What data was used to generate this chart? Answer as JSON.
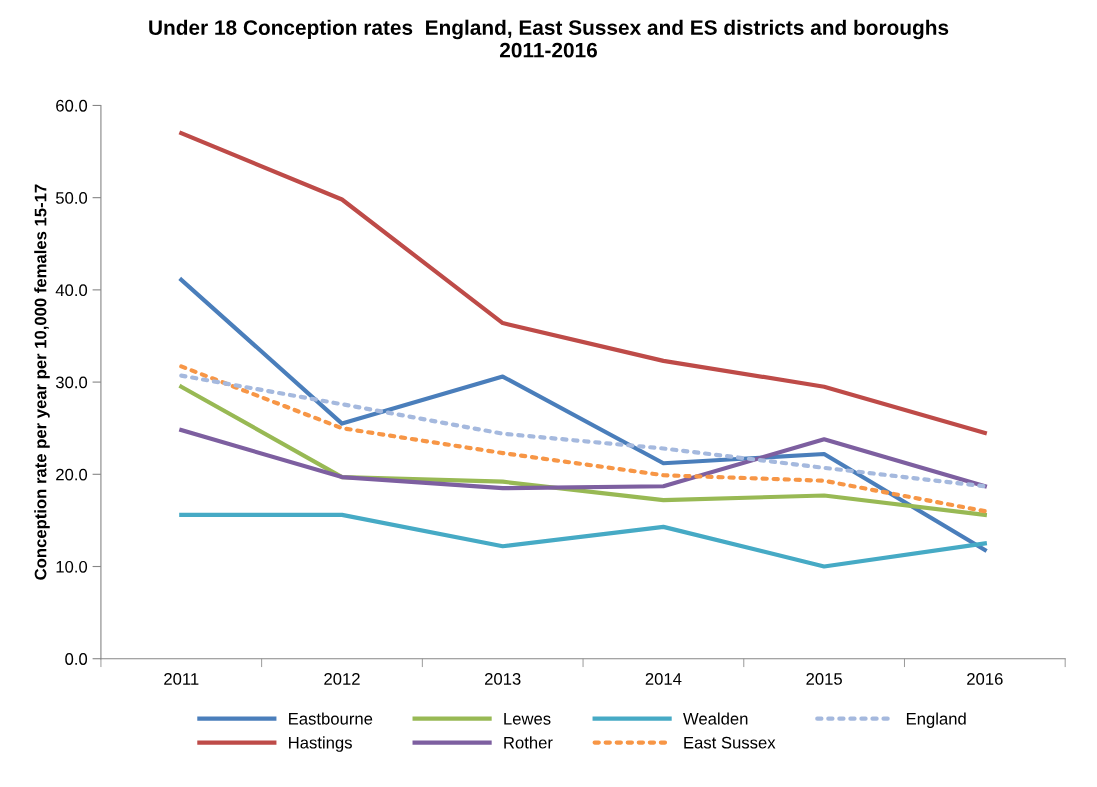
{
  "chart_data": {
    "type": "line",
    "title": "Under 18 Conception rates  England, East Sussex and ES districts and boroughs\n2011-2016",
    "ylabel": "Conception rate per year per 10,000 females 15-17",
    "categories": [
      "2011",
      "2012",
      "2013",
      "2014",
      "2015",
      "2016"
    ],
    "ylim": [
      0,
      60
    ],
    "yticks": [
      {
        "value": 0,
        "label": "0.0"
      },
      {
        "value": 10,
        "label": "10.0"
      },
      {
        "value": 20,
        "label": "20.0"
      },
      {
        "value": 30,
        "label": "30.0"
      },
      {
        "value": 40,
        "label": "40.0"
      },
      {
        "value": 50,
        "label": "50.0"
      },
      {
        "value": 60,
        "label": "60.0"
      }
    ],
    "grid": false,
    "legend": "bottom",
    "marker": "none",
    "series": [
      {
        "name": "Eastbourne",
        "color": "#4a7ebb",
        "values": [
          41.1,
          25.5,
          30.6,
          21.2,
          22.2,
          11.8
        ]
      },
      {
        "name": "Hastings",
        "color": "#be4b48",
        "values": [
          57.0,
          49.8,
          36.4,
          32.3,
          29.5,
          24.5
        ]
      },
      {
        "name": "Lewes",
        "color": "#98b954",
        "values": [
          29.5,
          19.7,
          19.2,
          17.2,
          17.7,
          15.6
        ]
      },
      {
        "name": "Rother",
        "color": "#7d5fa0",
        "values": [
          24.8,
          19.7,
          18.5,
          18.7,
          23.8,
          18.7
        ]
      },
      {
        "name": "Wealden",
        "color": "#46aac5",
        "values": [
          15.6,
          15.6,
          12.2,
          14.3,
          10.0,
          12.5
        ]
      },
      {
        "name": "East Sussex",
        "color": "#f79646",
        "line_style": "dotted",
        "values": [
          31.7,
          25.0,
          22.3,
          19.9,
          19.3,
          16.0
        ]
      },
      {
        "name": "England",
        "color": "#a5b9de",
        "line_style": "dotted",
        "values": [
          30.7,
          27.6,
          24.4,
          22.8,
          20.7,
          18.7
        ]
      }
    ]
  }
}
